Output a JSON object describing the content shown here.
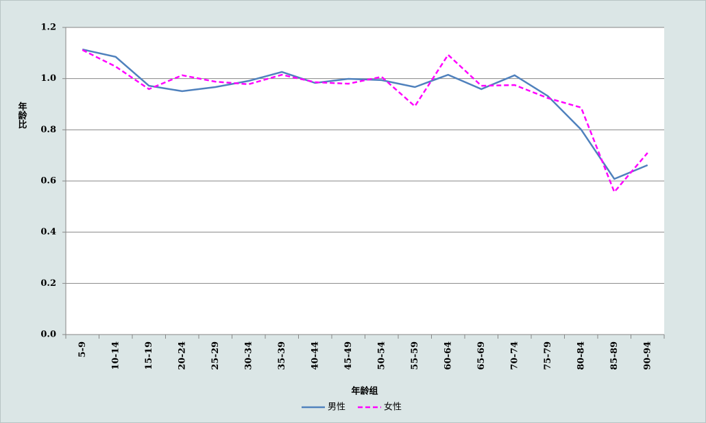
{
  "chart_data": {
    "type": "line",
    "x_label": "年龄组",
    "y_label": "年龄比",
    "categories": [
      "5-9",
      "10-14",
      "15-19",
      "20-24",
      "25-29",
      "30-34",
      "35-39",
      "40-44",
      "45-49",
      "50-54",
      "55-59",
      "60-64",
      "65-69",
      "70-74",
      "75-79",
      "80-84",
      "85-89",
      "90-94"
    ],
    "series": [
      {
        "name": "男性",
        "color": "#4f81bd",
        "dash": false,
        "values": [
          1.114,
          1.085,
          0.972,
          0.951,
          0.967,
          0.991,
          1.026,
          0.983,
          0.999,
          0.994,
          0.967,
          1.015,
          0.959,
          1.013,
          0.932,
          0.801,
          0.608,
          0.662
        ]
      },
      {
        "name": "女性",
        "color": "#ff00ff",
        "dash": true,
        "values": [
          1.112,
          1.047,
          0.959,
          1.013,
          0.988,
          0.978,
          1.015,
          0.986,
          0.98,
          1.007,
          0.892,
          1.093,
          0.972,
          0.975,
          0.924,
          0.887,
          0.557,
          0.71
        ]
      }
    ],
    "ylim": [
      0,
      1.2
    ],
    "yticks": [
      {
        "value": 0,
        "label": "0.0"
      },
      0.2,
      0.4,
      0.6,
      0.8,
      {
        "value": 1,
        "label": "1.0"
      },
      1.2
    ],
    "grid": true,
    "legend": "bottom"
  }
}
